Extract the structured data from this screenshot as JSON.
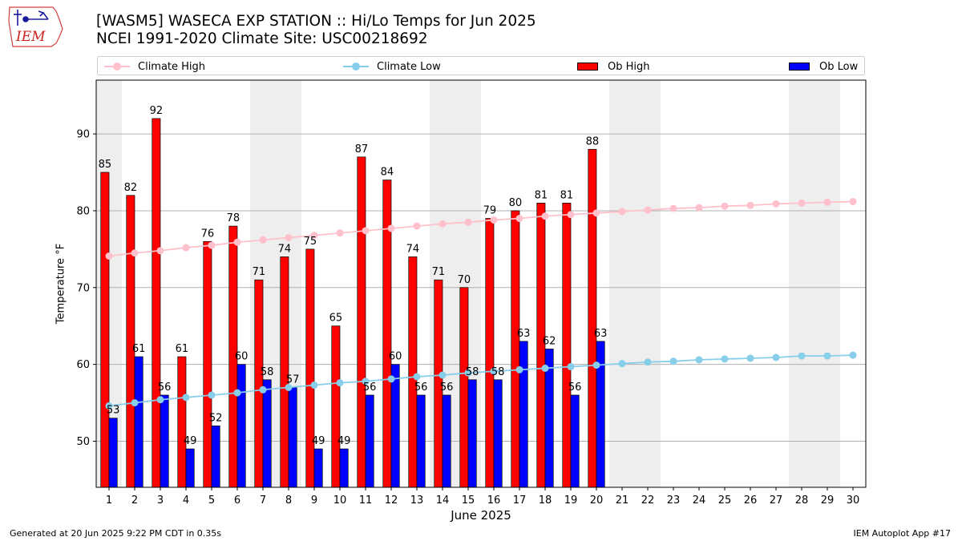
{
  "header": {
    "title_line1": "[WASM5] WASECA EXP STATION :: Hi/Lo Temps for Jun 2025",
    "title_line2": "NCEI 1991-2020 Climate Site: USC00218692"
  },
  "logo": {
    "text": "IEM"
  },
  "footer": {
    "generated": "Generated at 20 Jun 2025 9:22 PM CDT in 0.35s",
    "app": "IEM Autoplot App #17"
  },
  "colors": {
    "ob_high": "#ff0000",
    "ob_low": "#0000ff",
    "climate_high": "#ffc0cb",
    "climate_low": "#87ceeb",
    "weekend_band": "#eeeeee",
    "grid": "#b0b0b0"
  },
  "chart_data": {
    "type": "bar",
    "title": "[WASM5] WASECA EXP STATION :: Hi/Lo Temps for Jun 2025",
    "subtitle": "NCEI 1991-2020 Climate Site: USC00218692",
    "xlabel": "June 2025",
    "ylabel": "Temperature °F",
    "ylim": [
      44,
      97
    ],
    "yticks": [
      50,
      60,
      70,
      80,
      90
    ],
    "xlim": [
      0.5,
      30.5
    ],
    "grid": "horizontal",
    "legend_position": "top",
    "days": [
      1,
      2,
      3,
      4,
      5,
      6,
      7,
      8,
      9,
      10,
      11,
      12,
      13,
      14,
      15,
      16,
      17,
      18,
      19,
      20,
      21,
      22,
      23,
      24,
      25,
      26,
      27,
      28,
      29,
      30
    ],
    "weekend_bands": [
      [
        0.5,
        1.5
      ],
      [
        6.5,
        8.5
      ],
      [
        13.5,
        15.5
      ],
      [
        20.5,
        22.5
      ],
      [
        27.5,
        29.5
      ]
    ],
    "series": [
      {
        "name": "Climate High",
        "kind": "line",
        "values": [
          74.1,
          74.5,
          74.8,
          75.2,
          75.5,
          75.9,
          76.2,
          76.5,
          76.8,
          77.1,
          77.4,
          77.7,
          78.0,
          78.3,
          78.5,
          78.8,
          79.0,
          79.3,
          79.5,
          79.7,
          79.9,
          80.1,
          80.3,
          80.4,
          80.6,
          80.7,
          80.9,
          81.0,
          81.1,
          81.2
        ]
      },
      {
        "name": "Climate Low",
        "kind": "line",
        "values": [
          54.6,
          55.0,
          55.4,
          55.7,
          56.0,
          56.3,
          56.7,
          57.0,
          57.3,
          57.6,
          57.8,
          58.1,
          58.4,
          58.6,
          58.9,
          59.1,
          59.3,
          59.5,
          59.7,
          59.9,
          60.1,
          60.3,
          60.4,
          60.6,
          60.7,
          60.8,
          60.9,
          61.1,
          61.1,
          61.2
        ]
      },
      {
        "name": "Ob High",
        "kind": "bar",
        "values": [
          85,
          82,
          92,
          61,
          76,
          78,
          71,
          74,
          75,
          65,
          87,
          84,
          74,
          71,
          70,
          79,
          80,
          81,
          81,
          88
        ]
      },
      {
        "name": "Ob Low",
        "kind": "bar",
        "values": [
          53,
          61,
          56,
          49,
          52,
          60,
          58,
          57,
          49,
          49,
          56,
          60,
          56,
          56,
          58,
          58,
          63,
          62,
          56,
          63
        ]
      }
    ]
  }
}
